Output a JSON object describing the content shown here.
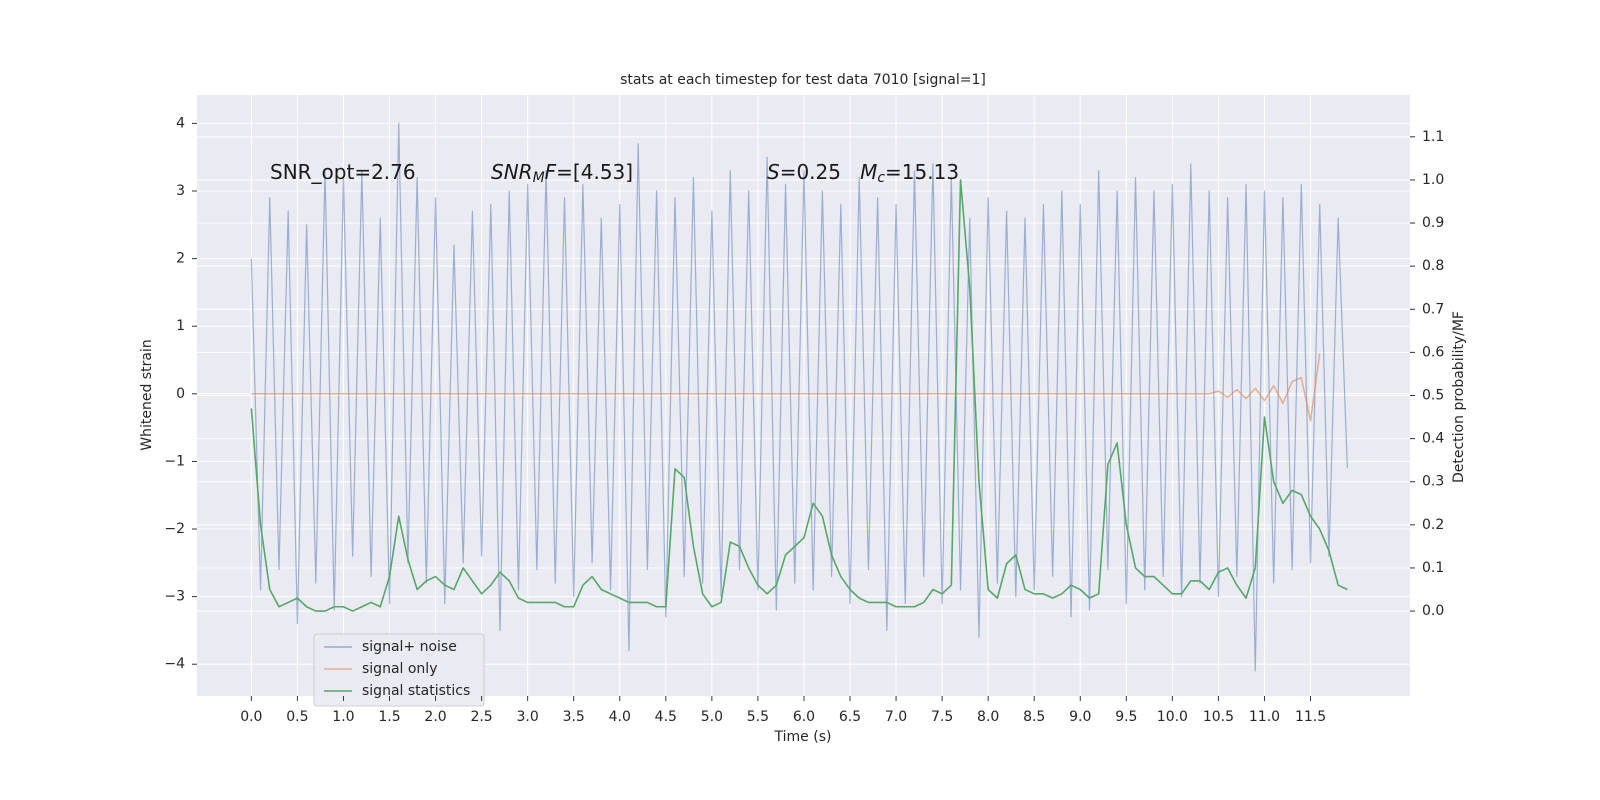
{
  "chart_data": {
    "type": "line",
    "title": "stats at each timestep for test data 7010 [signal=1]",
    "xlabel": "Time (s)",
    "ylabel": "Whitened strain",
    "y2label": "Detection probability/MF",
    "annotations": [
      [
        "SNR_opt=2.76"
      ],
      [
        "SNR",
        "M",
        "F",
        "=[4.53]"
      ],
      [
        "S",
        "=0.25   ",
        "M",
        "c",
        "=15.13"
      ]
    ],
    "grid": true,
    "legend": "lower left",
    "xlim": [
      -0.59,
      12.58
    ],
    "ylim": [
      -4.47,
      4.42
    ],
    "y2lim": [
      -0.197,
      1.197
    ],
    "xticks": [
      {
        "value": 0,
        "label": "0.0"
      },
      0.5,
      {
        "value": 1,
        "label": "1.0"
      },
      1.5,
      {
        "value": 2,
        "label": "2.0"
      },
      2.5,
      {
        "value": 3,
        "label": "3.0"
      },
      3.5,
      {
        "value": 4,
        "label": "4.0"
      },
      4.5,
      {
        "value": 5,
        "label": "5.0"
      },
      5.5,
      {
        "value": 6,
        "label": "6.0"
      },
      6.5,
      {
        "value": 7,
        "label": "7.0"
      },
      7.5,
      {
        "value": 8,
        "label": "8.0"
      },
      8.5,
      {
        "value": 9,
        "label": "9.0"
      },
      9.5,
      {
        "value": 10,
        "label": "10.0"
      },
      10.5,
      {
        "value": 11,
        "label": "11.0"
      },
      11.5
    ],
    "yticks": [
      {
        "value": -4,
        "label": "−4"
      },
      {
        "value": -3,
        "label": "−3"
      },
      {
        "value": -2,
        "label": "−2"
      },
      {
        "value": -1,
        "label": "−1"
      },
      0,
      1,
      2,
      3,
      4
    ],
    "y2ticks": [
      {
        "value": 0,
        "label": "0.0"
      },
      0.1,
      0.2,
      0.3,
      0.4,
      0.5,
      0.6,
      0.7,
      0.8,
      0.9,
      {
        "value": 1,
        "label": "1.0"
      },
      1.1
    ],
    "x": [
      0.0,
      0.1,
      0.2,
      0.3,
      0.4,
      0.5,
      0.6,
      0.7,
      0.8,
      0.9,
      1.0,
      1.1,
      1.2,
      1.3,
      1.4,
      1.5,
      1.6,
      1.7,
      1.8,
      1.9,
      2.0,
      2.1,
      2.2,
      2.3,
      2.4,
      2.5,
      2.6,
      2.7,
      2.8,
      2.9,
      3.0,
      3.1,
      3.2,
      3.3,
      3.4,
      3.5,
      3.6,
      3.7,
      3.8,
      3.9,
      4.0,
      4.1,
      4.2,
      4.3,
      4.4,
      4.5,
      4.6,
      4.7,
      4.8,
      4.9,
      5.0,
      5.1,
      5.2,
      5.3,
      5.4,
      5.5,
      5.6,
      5.7,
      5.8,
      5.9,
      6.0,
      6.1,
      6.2,
      6.3,
      6.4,
      6.5,
      6.6,
      6.7,
      6.8,
      6.9,
      7.0,
      7.1,
      7.2,
      7.3,
      7.4,
      7.5,
      7.6,
      7.7,
      7.8,
      7.9,
      8.0,
      8.1,
      8.2,
      8.3,
      8.4,
      8.5,
      8.6,
      8.7,
      8.8,
      8.9,
      9.0,
      9.1,
      9.2,
      9.3,
      9.4,
      9.5,
      9.6,
      9.7,
      9.8,
      9.9,
      10.0,
      10.1,
      10.2,
      10.3,
      10.4,
      10.5,
      10.6,
      10.7,
      10.8,
      10.9,
      11.0,
      11.1,
      11.2,
      11.3,
      11.4,
      11.5,
      11.6,
      11.7,
      11.8,
      11.9
    ],
    "series": [
      {
        "name": "signal+ noise",
        "color": "#4c72b0",
        "values": [
          2.0,
          -2.9,
          2.9,
          -2.6,
          2.7,
          -3.4,
          2.5,
          -2.8,
          3.3,
          -3.2,
          3.2,
          -2.4,
          3.3,
          -2.7,
          2.6,
          -3.1,
          4.0,
          -2.5,
          3.2,
          -2.8,
          2.9,
          -3.1,
          2.2,
          -2.5,
          2.7,
          -2.4,
          2.8,
          -3.5,
          3.0,
          -2.9,
          3.1,
          -2.6,
          3.3,
          -2.8,
          2.9,
          -3.0,
          3.1,
          -2.5,
          2.6,
          -2.9,
          2.8,
          -3.8,
          3.7,
          -2.6,
          3.0,
          -3.3,
          2.9,
          -2.7,
          3.2,
          -2.8,
          2.7,
          -3.0,
          3.3,
          -2.6,
          3.0,
          -2.9,
          3.5,
          -3.2,
          3.1,
          -2.8,
          3.3,
          -2.9,
          3.0,
          -2.7,
          2.8,
          -3.1,
          3.2,
          -2.6,
          2.9,
          -3.5,
          2.8,
          -3.1,
          3.3,
          -2.7,
          3.4,
          -3.1,
          3.2,
          -2.9,
          2.6,
          -3.6,
          2.9,
          -2.8,
          2.7,
          -3.0,
          2.6,
          -2.9,
          2.8,
          -2.7,
          3.0,
          -3.3,
          2.8,
          -3.2,
          3.3,
          -2.6,
          3.0,
          -3.1,
          3.2,
          -2.9,
          3.0,
          -2.7,
          3.1,
          -3.0,
          3.4,
          -2.8,
          3.0,
          -3.0,
          2.9,
          -2.7,
          3.1,
          -4.1,
          3.0,
          -2.8,
          2.9,
          -2.6,
          3.1,
          -2.5,
          2.8,
          -2.4,
          2.6,
          -1.1
        ]
      },
      {
        "name": "signal only",
        "color": "#dd8452",
        "values": [
          0,
          0,
          0,
          0,
          0,
          0,
          0,
          0,
          0,
          0,
          0,
          0,
          0,
          0,
          0,
          0,
          0,
          0,
          0,
          0,
          0,
          0,
          0,
          0,
          0,
          0,
          0,
          0,
          0,
          0,
          0,
          0,
          0,
          0,
          0,
          0,
          0,
          0,
          0,
          0,
          0,
          0,
          0,
          0,
          0,
          0,
          0,
          0,
          0,
          0,
          0,
          0,
          0,
          0,
          0,
          0,
          0,
          0,
          0,
          0,
          0,
          0,
          0,
          0,
          0,
          0,
          0,
          0,
          0,
          0,
          0,
          0,
          0,
          0,
          0,
          0,
          0,
          0,
          0,
          0,
          0,
          0,
          0,
          0,
          0,
          0,
          0,
          0,
          0,
          0,
          0,
          0,
          0,
          0,
          0,
          0,
          0,
          0,
          0,
          0,
          0,
          0,
          0,
          0,
          0,
          0.04,
          -0.05,
          0.06,
          -0.07,
          0.08,
          -0.1,
          0.12,
          -0.14,
          0.18,
          0.24,
          -0.4,
          0.6,
          null,
          null,
          null
        ]
      },
      {
        "name": "signal statistics",
        "color": "#55a868",
        "axis": "y2",
        "values": [
          0.47,
          0.2,
          0.05,
          0.01,
          0.02,
          0.03,
          0.01,
          0.0,
          0.0,
          0.01,
          0.01,
          0.0,
          0.01,
          0.02,
          0.01,
          0.08,
          0.22,
          0.12,
          0.05,
          0.07,
          0.08,
          0.06,
          0.05,
          0.1,
          0.07,
          0.04,
          0.06,
          0.09,
          0.07,
          0.03,
          0.02,
          0.02,
          0.02,
          0.02,
          0.01,
          0.01,
          0.06,
          0.08,
          0.05,
          0.04,
          0.03,
          0.02,
          0.02,
          0.02,
          0.01,
          0.01,
          0.33,
          0.31,
          0.15,
          0.04,
          0.01,
          0.02,
          0.16,
          0.15,
          0.1,
          0.06,
          0.04,
          0.06,
          0.13,
          0.15,
          0.17,
          0.25,
          0.22,
          0.13,
          0.08,
          0.05,
          0.03,
          0.02,
          0.02,
          0.02,
          0.01,
          0.01,
          0.01,
          0.02,
          0.05,
          0.04,
          0.06,
          1.0,
          0.75,
          0.3,
          0.05,
          0.03,
          0.11,
          0.13,
          0.05,
          0.04,
          0.04,
          0.03,
          0.04,
          0.06,
          0.05,
          0.03,
          0.04,
          0.34,
          0.39,
          0.2,
          0.1,
          0.08,
          0.08,
          0.06,
          0.04,
          0.04,
          0.07,
          0.07,
          0.05,
          0.09,
          0.1,
          0.06,
          0.03,
          0.1,
          0.45,
          0.3,
          0.25,
          0.28,
          0.27,
          0.22,
          0.19,
          0.14,
          0.06,
          0.05
        ]
      }
    ]
  }
}
